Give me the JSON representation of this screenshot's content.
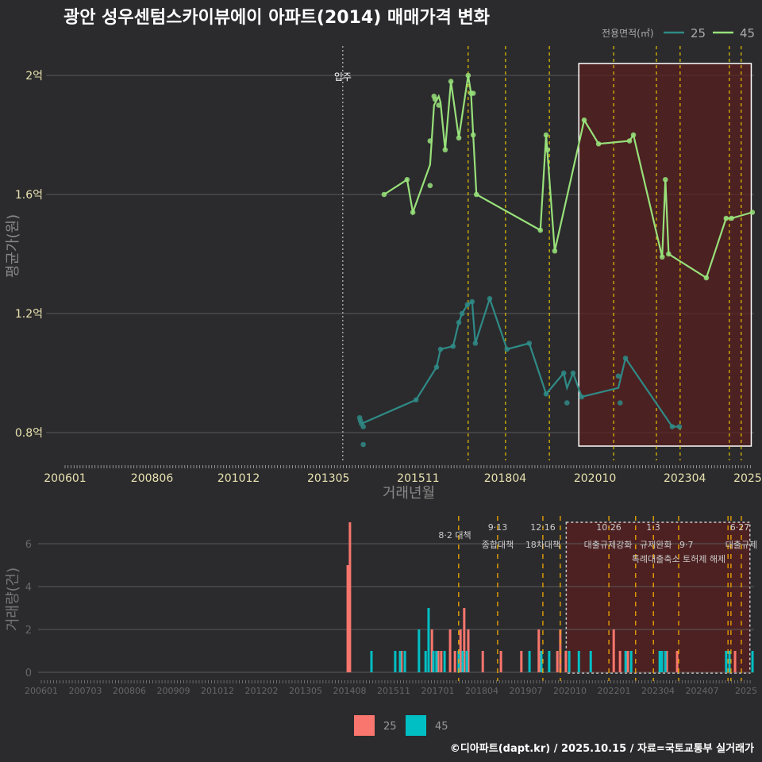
{
  "title": "광안 성우센텀스카이뷰에이 아파트(2014) 매매가격 변화",
  "legend_top": {
    "title": "전용면적(㎡)",
    "items": [
      "25",
      "45"
    ]
  },
  "legend_bottom": {
    "items": [
      "25",
      "45"
    ]
  },
  "footer": "©디아파트(dapt.kr) / 2025.10.15 / 자료=국토교통부 실거래가",
  "colors": {
    "s25_line": "#2f8a86",
    "s45_line": "#98e07a",
    "bar25": "#f8766d",
    "bar45": "#00bfc4",
    "event": "#e6c200",
    "event_bottom": "#f2a900",
    "highlight": "#5a1e1e"
  },
  "chart_data": [
    {
      "type": "line",
      "title": "광안 성우센텀스카이뷰에이 아파트(2014) 매매가격 변화",
      "xlabel": "거래년월",
      "ylabel": "평균가(원)",
      "xlim": [
        2006,
        2025.1
      ],
      "ylim": [
        0.7,
        2.1
      ],
      "x_ticks": [
        {
          "v": 2006,
          "label": "200601"
        },
        {
          "v": 2008.42,
          "label": "200806"
        },
        {
          "v": 2010.83,
          "label": "201012"
        },
        {
          "v": 2013.33,
          "label": "201305"
        },
        {
          "v": 2015.83,
          "label": "201511"
        },
        {
          "v": 2018.25,
          "label": "201804"
        },
        {
          "v": 2020.75,
          "label": "202010"
        },
        {
          "v": 2023.25,
          "label": "202304"
        },
        {
          "v": 2025,
          "label": "2025"
        }
      ],
      "y_ticks": [
        {
          "v": 0.8,
          "label": "0.8억"
        },
        {
          "v": 1.2,
          "label": "1.2억"
        },
        {
          "v": 1.6,
          "label": "1.6억"
        },
        {
          "v": 2.0,
          "label": "2억"
        }
      ],
      "move_in": {
        "x": 2013.73,
        "label": "입주"
      },
      "events": [
        2017.22,
        2018.26,
        2019.48,
        2021.27,
        2022.46,
        2023.12,
        2024.49,
        2024.82
      ],
      "highlight": [
        2020.3,
        2025.1
      ],
      "series": [
        {
          "name": "25",
          "line": [
            [
              2014.25,
              0.83
            ],
            [
              2015.77,
              0.91
            ],
            [
              2016.34,
              1.02
            ],
            [
              2016.45,
              1.08
            ],
            [
              2016.8,
              1.09
            ],
            [
              2016.96,
              1.17
            ],
            [
              2017.05,
              1.2
            ],
            [
              2017.2,
              1.23
            ],
            [
              2017.33,
              1.24
            ],
            [
              2017.42,
              1.1
            ],
            [
              2017.82,
              1.25
            ],
            [
              2018.3,
              1.08
            ],
            [
              2018.92,
              1.1
            ],
            [
              2019.39,
              0.93
            ],
            [
              2019.88,
              1.0
            ],
            [
              2019.97,
              0.95
            ],
            [
              2020.14,
              1.0
            ],
            [
              2020.38,
              0.92
            ],
            [
              2021.4,
              0.95
            ],
            [
              2021.6,
              1.05
            ],
            [
              2022.9,
              0.82
            ],
            [
              2023.1,
              0.82
            ]
          ],
          "points": [
            [
              2014.2,
              0.85
            ],
            [
              2014.22,
              0.84
            ],
            [
              2014.25,
              0.83
            ],
            [
              2014.3,
              0.82
            ],
            [
              2014.3,
              0.76
            ],
            [
              2015.77,
              0.91
            ],
            [
              2016.34,
              1.02
            ],
            [
              2016.45,
              1.08
            ],
            [
              2016.8,
              1.09
            ],
            [
              2016.96,
              1.17
            ],
            [
              2017.05,
              1.2
            ],
            [
              2017.2,
              1.23
            ],
            [
              2017.33,
              1.24
            ],
            [
              2017.42,
              1.1
            ],
            [
              2017.82,
              1.25
            ],
            [
              2018.3,
              1.08
            ],
            [
              2018.92,
              1.1
            ],
            [
              2019.39,
              0.93
            ],
            [
              2019.88,
              1.0
            ],
            [
              2019.97,
              0.9
            ],
            [
              2020.14,
              1.0
            ],
            [
              2020.38,
              0.92
            ],
            [
              2021.4,
              0.99
            ],
            [
              2021.45,
              0.9
            ],
            [
              2021.6,
              1.05
            ],
            [
              2022.9,
              0.82
            ],
            [
              2023.1,
              0.82
            ]
          ]
        },
        {
          "name": "45",
          "line": [
            [
              2014.88,
              1.6
            ],
            [
              2015.52,
              1.65
            ],
            [
              2015.68,
              1.54
            ],
            [
              2016.16,
              1.7
            ],
            [
              2016.27,
              1.9
            ],
            [
              2016.4,
              1.93
            ],
            [
              2016.45,
              1.91
            ],
            [
              2016.58,
              1.75
            ],
            [
              2016.74,
              1.98
            ],
            [
              2016.96,
              1.79
            ],
            [
              2017.22,
              2.0
            ],
            [
              2017.3,
              1.94
            ],
            [
              2017.36,
              1.8
            ],
            [
              2017.45,
              1.6
            ],
            [
              2019.23,
              1.48
            ],
            [
              2019.39,
              1.8
            ],
            [
              2019.63,
              1.41
            ],
            [
              2020.45,
              1.85
            ],
            [
              2020.85,
              1.77
            ],
            [
              2021.71,
              1.78
            ],
            [
              2021.82,
              1.8
            ],
            [
              2022.62,
              1.39
            ],
            [
              2022.71,
              1.65
            ],
            [
              2022.8,
              1.4
            ],
            [
              2023.85,
              1.32
            ],
            [
              2024.4,
              1.52
            ],
            [
              2024.55,
              1.52
            ],
            [
              2025.13,
              1.54
            ]
          ],
          "points": [
            [
              2014.88,
              1.6
            ],
            [
              2015.52,
              1.65
            ],
            [
              2015.68,
              1.54
            ],
            [
              2016.16,
              1.78
            ],
            [
              2016.16,
              1.63
            ],
            [
              2016.27,
              1.93
            ],
            [
              2016.3,
              1.92
            ],
            [
              2016.4,
              1.9
            ],
            [
              2016.58,
              1.75
            ],
            [
              2016.74,
              1.98
            ],
            [
              2016.96,
              1.79
            ],
            [
              2017.22,
              2.0
            ],
            [
              2017.3,
              1.94
            ],
            [
              2017.36,
              1.94
            ],
            [
              2017.36,
              1.8
            ],
            [
              2017.45,
              1.6
            ],
            [
              2019.23,
              1.48
            ],
            [
              2019.39,
              1.8
            ],
            [
              2019.43,
              1.75
            ],
            [
              2019.63,
              1.41
            ],
            [
              2020.45,
              1.85
            ],
            [
              2020.85,
              1.77
            ],
            [
              2021.71,
              1.78
            ],
            [
              2021.82,
              1.8
            ],
            [
              2022.62,
              1.39
            ],
            [
              2022.71,
              1.65
            ],
            [
              2022.8,
              1.4
            ],
            [
              2023.85,
              1.32
            ],
            [
              2024.4,
              1.52
            ],
            [
              2024.55,
              1.52
            ],
            [
              2025.13,
              1.54
            ]
          ]
        }
      ]
    },
    {
      "type": "bar",
      "xlabel": "",
      "ylabel": "거래량(건)",
      "xlim": [
        2006,
        2025.1
      ],
      "ylim": [
        0,
        7
      ],
      "x_ticks": [
        "200601",
        "200703",
        "200806",
        "200909",
        "201012",
        "201202",
        "201305",
        "201408",
        "201511",
        "201701",
        "201804",
        "201907",
        "202010",
        "202201",
        "202304",
        "202407",
        "2025"
      ],
      "y_ticks": [
        0,
        2,
        4,
        6
      ],
      "highlight": [
        2020.15,
        2025.1
      ],
      "events": [
        {
          "x": 2017.25,
          "date": "8·2 대책",
          "text": ""
        },
        {
          "x": 2018.3,
          "date": "9·13",
          "text": "종합대책"
        },
        {
          "x": 2019.52,
          "date": "12·16",
          "text": "18차대책"
        },
        {
          "x": 2019.99,
          "date": "",
          "text": ""
        },
        {
          "x": 2021.3,
          "date": "10·26",
          "text": "대출규제강화"
        },
        {
          "x": 2022.02,
          "date": "",
          "text": "규제완화"
        },
        {
          "x": 2022.5,
          "date": "1·3",
          "text": ""
        },
        {
          "x": 2023.18,
          "date": "9·7",
          "text": "특례대출축소 토허제 해제"
        },
        {
          "x": 2024.51,
          "date": "",
          "text": ""
        },
        {
          "x": 2024.59,
          "date": "",
          "text": ""
        },
        {
          "x": 2024.87,
          "date": "6·27",
          "text": "대출규제"
        }
      ],
      "series": [
        {
          "name": "25",
          "bars": [
            [
              2014.26,
              5
            ],
            [
              2014.32,
              7
            ],
            [
              2015.71,
              1
            ],
            [
              2015.8,
              1
            ],
            [
              2016.53,
              2
            ],
            [
              2016.7,
              1
            ],
            [
              2016.78,
              1
            ],
            [
              2017.02,
              2
            ],
            [
              2017.15,
              1
            ],
            [
              2017.3,
              2
            ],
            [
              2017.4,
              3
            ],
            [
              2017.51,
              2
            ],
            [
              2017.9,
              1
            ],
            [
              2018.39,
              1
            ],
            [
              2018.94,
              1
            ],
            [
              2019.41,
              2
            ],
            [
              2019.46,
              1
            ],
            [
              2019.91,
              1
            ],
            [
              2019.99,
              2
            ],
            [
              2020.14,
              1
            ],
            [
              2021.43,
              2
            ],
            [
              2021.6,
              1
            ],
            [
              2021.81,
              1
            ],
            [
              2022.86,
              1
            ],
            [
              2023.14,
              1
            ],
            [
              2024.7,
              1
            ]
          ]
        },
        {
          "name": "45",
          "bars": [
            [
              2014.9,
              1
            ],
            [
              2015.54,
              1
            ],
            [
              2015.67,
              1
            ],
            [
              2015.8,
              1
            ],
            [
              2016.18,
              2
            ],
            [
              2016.36,
              1
            ],
            [
              2016.44,
              3
            ],
            [
              2016.57,
              1
            ],
            [
              2016.65,
              1
            ],
            [
              2016.87,
              1
            ],
            [
              2017.25,
              1
            ],
            [
              2017.36,
              1
            ],
            [
              2017.47,
              1
            ],
            [
              2019.16,
              1
            ],
            [
              2019.48,
              1
            ],
            [
              2019.69,
              1
            ],
            [
              2020.23,
              1
            ],
            [
              2020.49,
              1
            ],
            [
              2020.81,
              1
            ],
            [
              2021.75,
              1
            ],
            [
              2021.9,
              1
            ],
            [
              2022.67,
              1
            ],
            [
              2022.73,
              1
            ],
            [
              2022.82,
              1
            ],
            [
              2024.46,
              1
            ],
            [
              2024.55,
              1
            ],
            [
              2025.17,
              1
            ]
          ]
        }
      ]
    }
  ]
}
